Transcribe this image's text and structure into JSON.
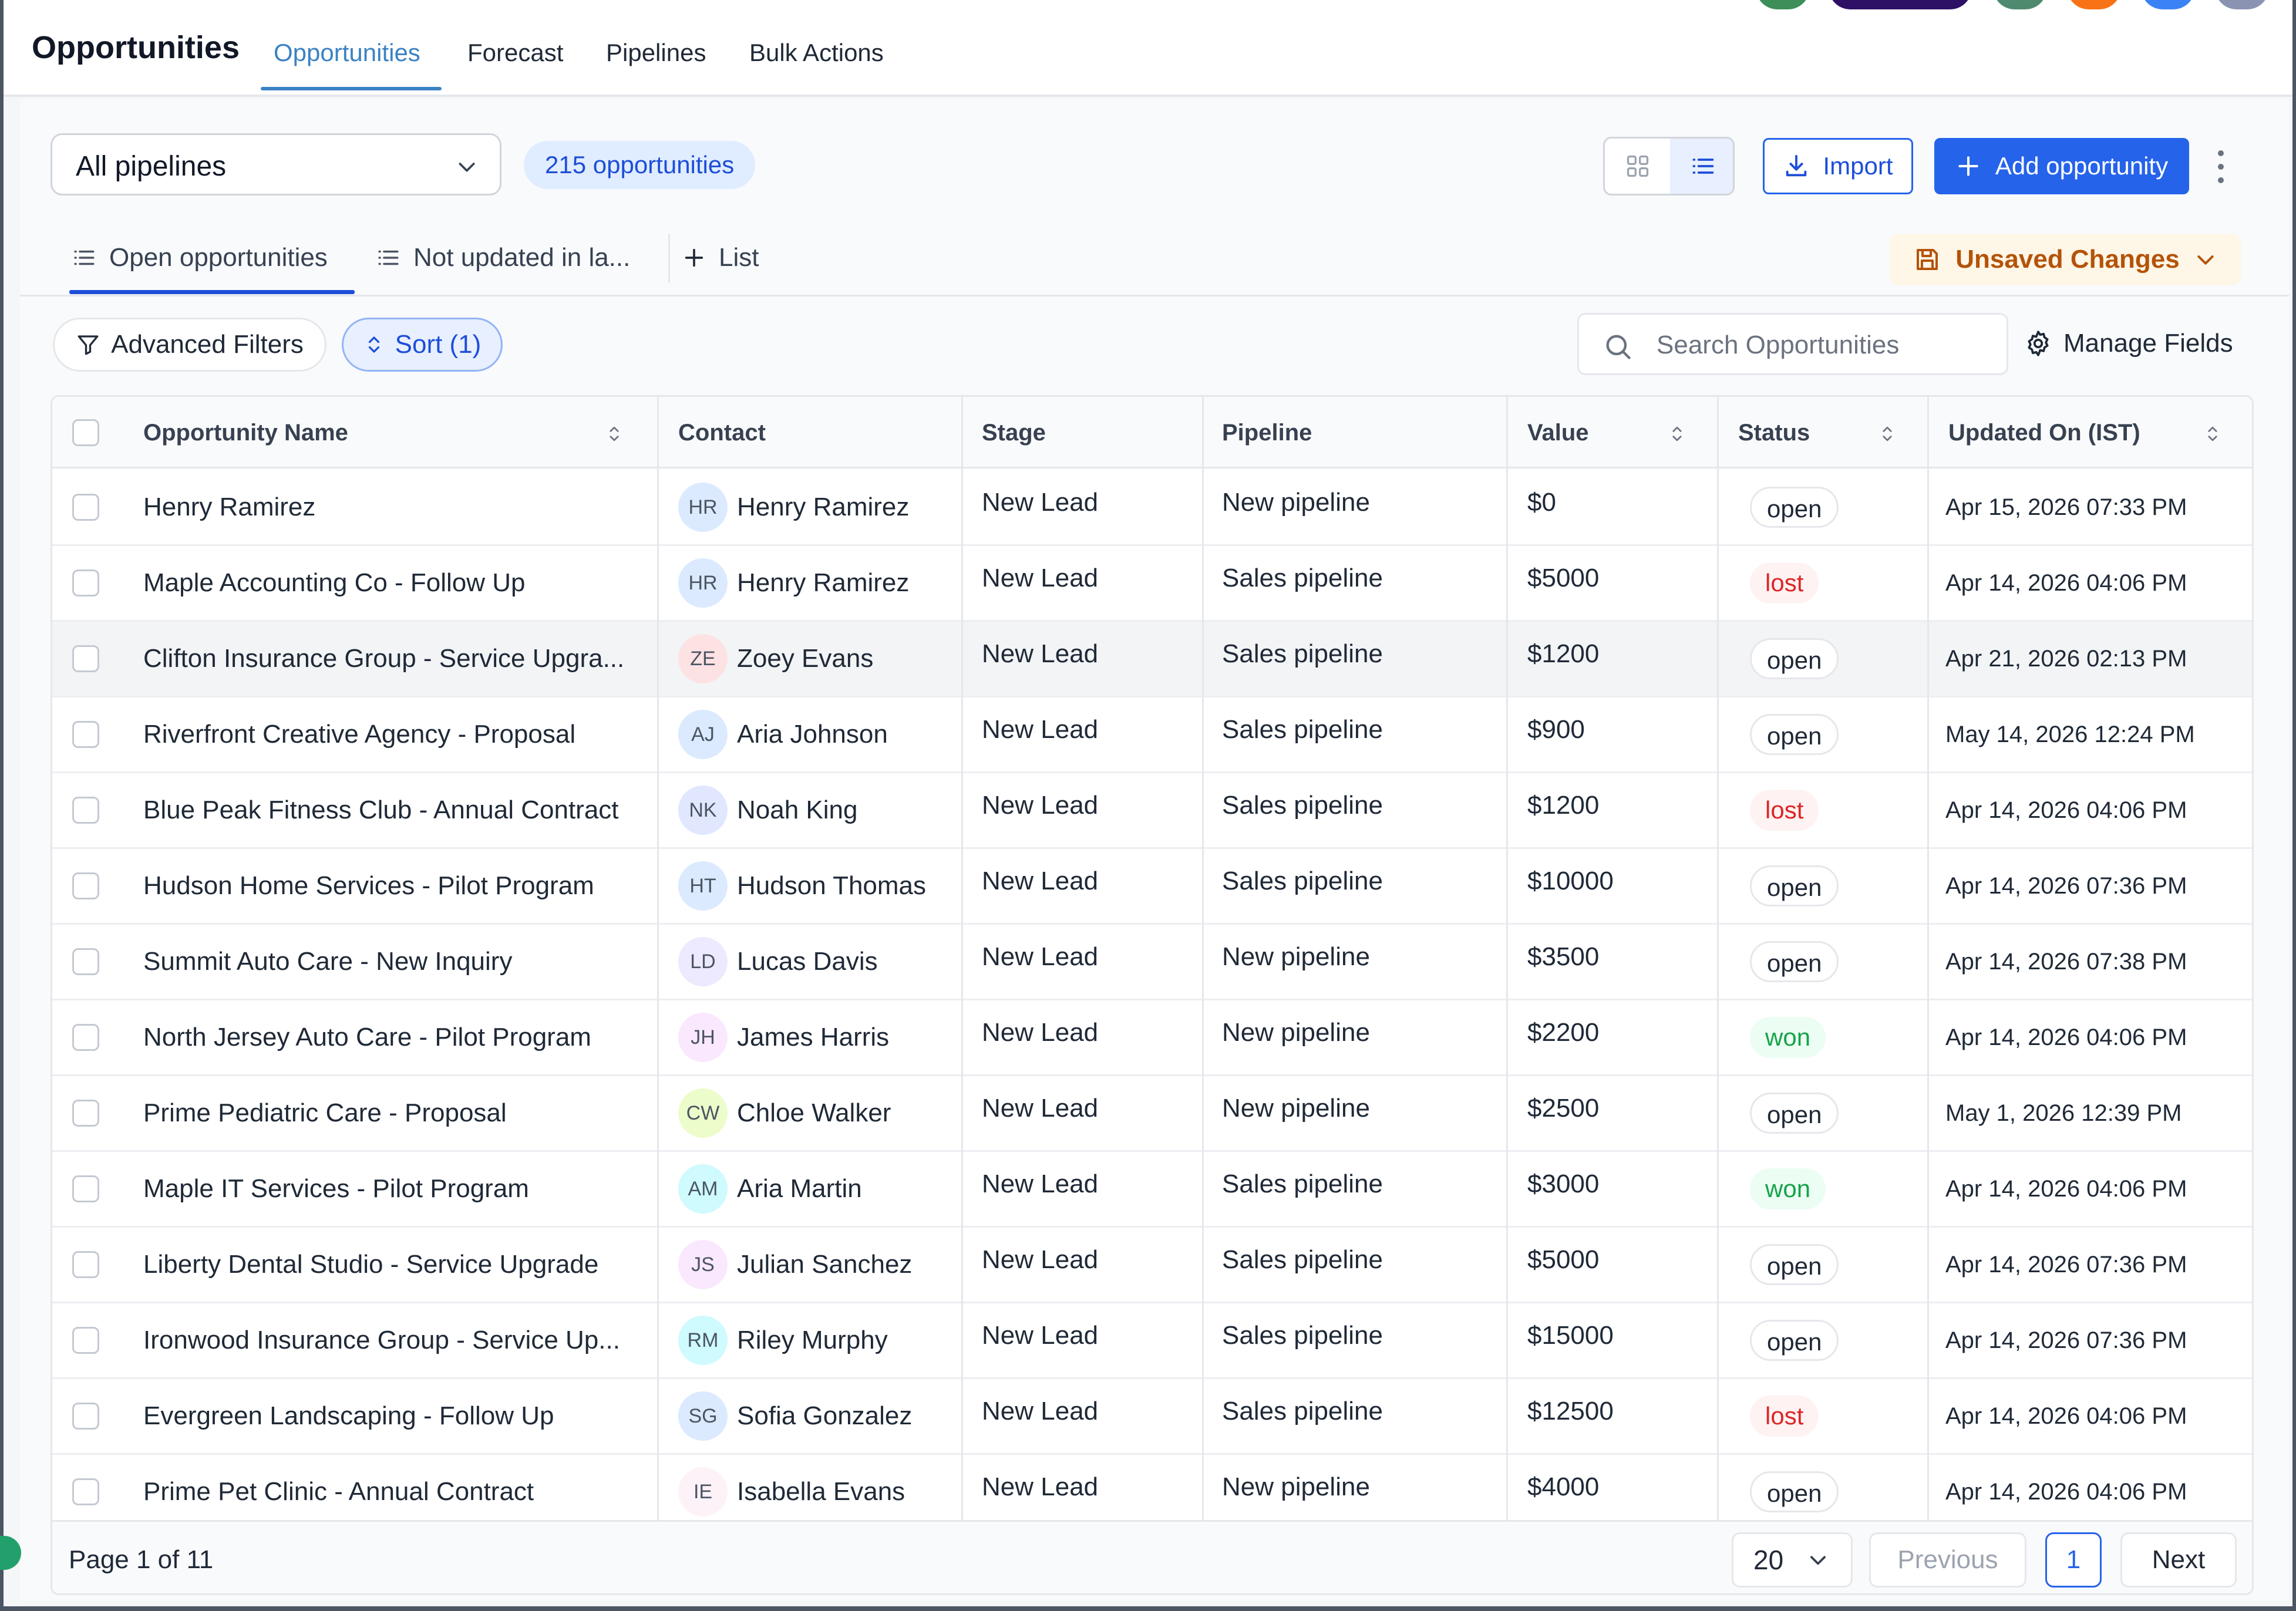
{
  "app_title": "Opportunities",
  "nav_tabs": [
    "Opportunities",
    "Forecast",
    "Pipelines",
    "Bulk Actions"
  ],
  "toolbar": {
    "pipeline_select": "All pipelines",
    "count_badge": "215 opportunities",
    "import_label": "Import",
    "add_label": "Add opportunity"
  },
  "list_tabs": {
    "open": "Open opportunities",
    "not_updated": "Not updated in la...",
    "add_list": "List",
    "unsaved": "Unsaved Changes"
  },
  "filters": {
    "advanced": "Advanced Filters",
    "sort": "Sort (1)",
    "search_placeholder": "Search Opportunities",
    "manage_fields": "Manage Fields"
  },
  "columns": [
    "Opportunity Name",
    "Contact",
    "Stage",
    "Pipeline",
    "Value",
    "Status",
    "Updated On (IST)"
  ],
  "rows": [
    {
      "name": "Henry Ramirez",
      "initials": "HR",
      "contact": "Henry Ramirez",
      "stage": "New Lead",
      "pipeline": "New pipeline",
      "value": "$0",
      "status": "open",
      "updated": "Apr 15, 2026 07:33 PM",
      "avatar_color": "#dbeafe"
    },
    {
      "name": "Maple Accounting Co - Follow Up",
      "initials": "HR",
      "contact": "Henry Ramirez",
      "stage": "New Lead",
      "pipeline": "Sales pipeline",
      "value": "$5000",
      "status": "lost",
      "updated": "Apr 14, 2026 04:06 PM",
      "avatar_color": "#dbeafe"
    },
    {
      "name": "Clifton Insurance Group - Service Upgra...",
      "initials": "ZE",
      "contact": "Zoey Evans",
      "stage": "New Lead",
      "pipeline": "Sales pipeline",
      "value": "$1200",
      "status": "open",
      "updated": "Apr 21, 2026 02:13 PM",
      "avatar_color": "#fde2e4"
    },
    {
      "name": "Riverfront Creative Agency - Proposal",
      "initials": "AJ",
      "contact": "Aria Johnson",
      "stage": "New Lead",
      "pipeline": "Sales pipeline",
      "value": "$900",
      "status": "open",
      "updated": "May 14, 2026 12:24 PM",
      "avatar_color": "#dbeafe"
    },
    {
      "name": "Blue Peak Fitness Club - Annual Contract",
      "initials": "NK",
      "contact": "Noah King",
      "stage": "New Lead",
      "pipeline": "Sales pipeline",
      "value": "$1200",
      "status": "lost",
      "updated": "Apr 14, 2026 04:06 PM",
      "avatar_color": "#e0e7ff"
    },
    {
      "name": "Hudson Home Services - Pilot Program",
      "initials": "HT",
      "contact": "Hudson Thomas",
      "stage": "New Lead",
      "pipeline": "Sales pipeline",
      "value": "$10000",
      "status": "open",
      "updated": "Apr 14, 2026 07:36 PM",
      "avatar_color": "#dbeafe"
    },
    {
      "name": "Summit Auto Care - New Inquiry",
      "initials": "LD",
      "contact": "Lucas Davis",
      "stage": "New Lead",
      "pipeline": "New pipeline",
      "value": "$3500",
      "status": "open",
      "updated": "Apr 14, 2026 07:38 PM",
      "avatar_color": "#ede9fe"
    },
    {
      "name": "North Jersey Auto Care - Pilot Program",
      "initials": "JH",
      "contact": "James Harris",
      "stage": "New Lead",
      "pipeline": "New pipeline",
      "value": "$2200",
      "status": "won",
      "updated": "Apr 14, 2026 04:06 PM",
      "avatar_color": "#fae8ff"
    },
    {
      "name": "Prime Pediatric Care - Proposal",
      "initials": "CW",
      "contact": "Chloe Walker",
      "stage": "New Lead",
      "pipeline": "New pipeline",
      "value": "$2500",
      "status": "open",
      "updated": "May 1, 2026 12:39 PM",
      "avatar_color": "#ecfccb"
    },
    {
      "name": "Maple IT Services - Pilot Program",
      "initials": "AM",
      "contact": "Aria Martin",
      "stage": "New Lead",
      "pipeline": "Sales pipeline",
      "value": "$3000",
      "status": "won",
      "updated": "Apr 14, 2026 04:06 PM",
      "avatar_color": "#cffafe"
    },
    {
      "name": "Liberty Dental Studio - Service Upgrade",
      "initials": "JS",
      "contact": "Julian Sanchez",
      "stage": "New Lead",
      "pipeline": "Sales pipeline",
      "value": "$5000",
      "status": "open",
      "updated": "Apr 14, 2026 07:36 PM",
      "avatar_color": "#fae8ff"
    },
    {
      "name": "Ironwood Insurance Group - Service Up...",
      "initials": "RM",
      "contact": "Riley Murphy",
      "stage": "New Lead",
      "pipeline": "Sales pipeline",
      "value": "$15000",
      "status": "open",
      "updated": "Apr 14, 2026 07:36 PM",
      "avatar_color": "#cffafe"
    },
    {
      "name": "Evergreen Landscaping - Follow Up",
      "initials": "SG",
      "contact": "Sofia Gonzalez",
      "stage": "New Lead",
      "pipeline": "Sales pipeline",
      "value": "$12500",
      "status": "lost",
      "updated": "Apr 14, 2026 04:06 PM",
      "avatar_color": "#dbeafe"
    },
    {
      "name": "Prime Pet Clinic - Annual Contract",
      "initials": "IE",
      "contact": "Isabella Evans",
      "stage": "New Lead",
      "pipeline": "New pipeline",
      "value": "$4000",
      "status": "open",
      "updated": "Apr 14, 2026 04:06 PM",
      "avatar_color": "#fdf2f8"
    }
  ],
  "pagination": {
    "page_label": "Page 1 of 11",
    "page_size": "20",
    "previous": "Previous",
    "current": "1",
    "next": "Next"
  },
  "colors": {
    "accent": "#2563eb",
    "nav_active": "#3b82c4",
    "unsaved": "#b45309",
    "lost": "#dc2626",
    "won": "#16a34a"
  }
}
